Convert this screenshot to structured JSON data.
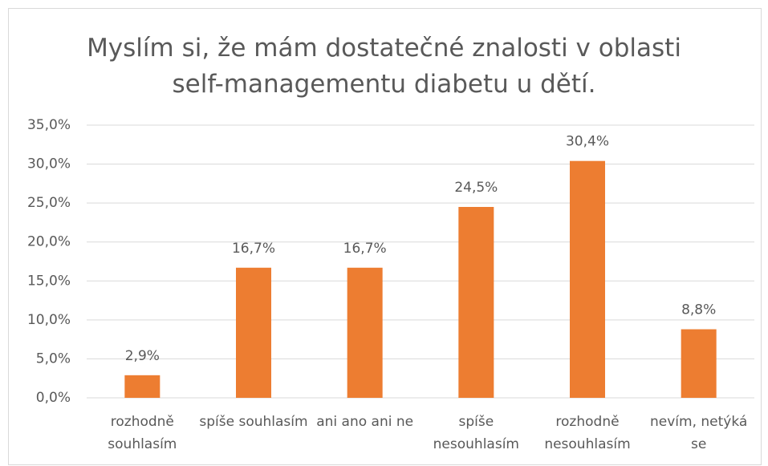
{
  "chart_data": {
    "type": "bar",
    "title": "Myslím si, že mám dostatečné znalosti v oblasti self-managementu diabetu u dětí.",
    "categories": [
      "rozhodně souhlasím",
      "spíše souhlasím",
      "ani ano ani ne",
      "spíše nesouhlasím",
      "rozhodně nesouhlasím",
      "nevím, netýká se"
    ],
    "values": [
      2.9,
      16.7,
      16.7,
      24.5,
      30.4,
      8.8
    ],
    "value_labels": [
      "2,9%",
      "16,7%",
      "16,7%",
      "24,5%",
      "30,4%",
      "8,8%"
    ],
    "color": "#ed7d31",
    "ylim": [
      0,
      35
    ],
    "yticks": [
      {
        "value": 0,
        "label": "0,0%"
      },
      {
        "value": 5,
        "label": "5,0%"
      },
      {
        "value": 10,
        "label": "10,0%"
      },
      {
        "value": 15,
        "label": "15,0%"
      },
      {
        "value": 20,
        "label": "20,0%"
      },
      {
        "value": 25,
        "label": "25,0%"
      },
      {
        "value": 30,
        "label": "30,0%"
      },
      {
        "value": 35,
        "label": "35,0%"
      }
    ],
    "grid": true
  }
}
